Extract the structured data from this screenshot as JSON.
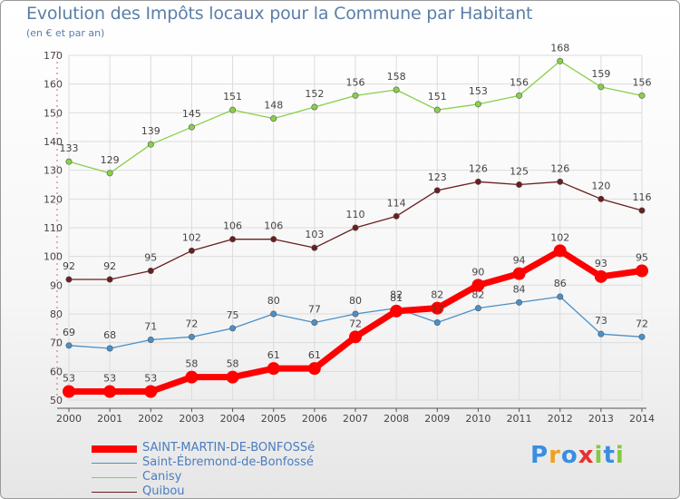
{
  "chart_data": {
    "type": "line",
    "title": "Evolution des Impôts locaux pour la Commune par Habitant",
    "subtitle": "(en € et par an)",
    "categories": [
      "2000",
      "2001",
      "2002",
      "2003",
      "2004",
      "2005",
      "2006",
      "2007",
      "2008",
      "2009",
      "2010",
      "2011",
      "2012",
      "2013",
      "2014"
    ],
    "ylim": [
      50,
      170
    ],
    "yticks": [
      50,
      60,
      70,
      80,
      90,
      100,
      110,
      120,
      130,
      140,
      150,
      160,
      170
    ],
    "grid": true,
    "legend_position": "bottom-left",
    "series": [
      {
        "name": "SAINT-MARTIN-DE-BONFOSSé",
        "color": "#ff0000",
        "values": [
          53,
          53,
          53,
          58,
          58,
          61,
          61,
          72,
          81,
          82,
          90,
          94,
          102,
          93,
          95
        ]
      },
      {
        "name": "Saint-Ébremond-de-Bonfossé",
        "color": "#4a90c8",
        "values": [
          69,
          68,
          71,
          72,
          75,
          80,
          77,
          80,
          82,
          77,
          82,
          84,
          86,
          73,
          72
        ]
      },
      {
        "name": "Canisy",
        "color": "#88d048",
        "values": [
          133,
          129,
          139,
          145,
          151,
          148,
          152,
          156,
          158,
          151,
          153,
          156,
          168,
          159,
          156
        ]
      },
      {
        "name": "Quibou",
        "color": "#6b1e1e",
        "values": [
          92,
          92,
          95,
          102,
          106,
          106,
          103,
          110,
          114,
          123,
          126,
          125,
          126,
          120,
          116
        ]
      }
    ]
  },
  "logo": {
    "letters": [
      "P",
      "r",
      "o",
      "x",
      "i",
      "t",
      "i"
    ],
    "colors": [
      "#3a8ee0",
      "#f0a020",
      "#3a8ee0",
      "#e83030",
      "#88c840",
      "#3a8ee0",
      "#88c840"
    ]
  }
}
